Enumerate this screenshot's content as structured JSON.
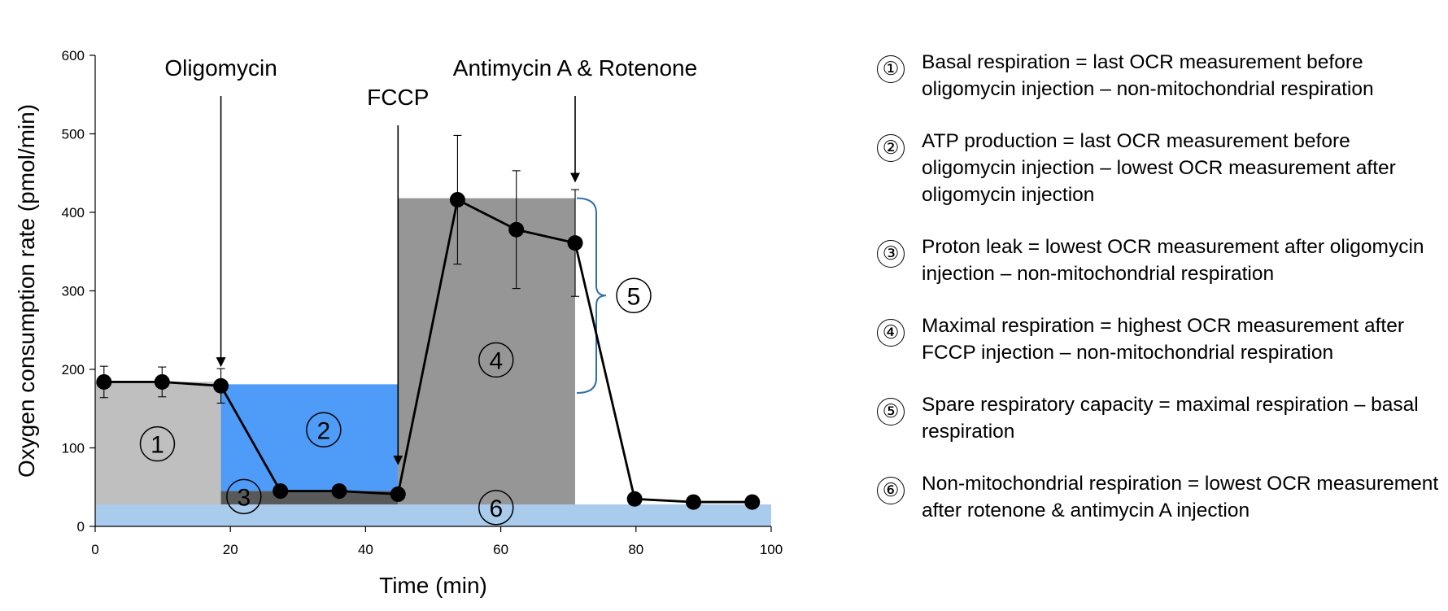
{
  "chart_data": {
    "type": "line",
    "xlabel": "Time (min)",
    "ylabel": "Oxygen consumption rate (pmol/min)",
    "xlim": [
      0,
      100
    ],
    "ylim": [
      0,
      600
    ],
    "xticks": [
      0,
      20,
      40,
      60,
      80,
      100
    ],
    "yticks": [
      0,
      100,
      200,
      300,
      400,
      500,
      600
    ],
    "grid": false,
    "series": [
      {
        "x": [
          1.3,
          9.9,
          18.6,
          27.4,
          36.1,
          44.8,
          53.6,
          62.3,
          71.0,
          79.8,
          88.5,
          97.2
        ],
        "y": [
          184,
          184,
          179,
          45,
          45,
          41,
          416,
          378,
          361,
          35,
          31,
          31
        ],
        "error": [
          20,
          19,
          22,
          null,
          null,
          null,
          82,
          75,
          68,
          null,
          null,
          null
        ],
        "color": "#000000"
      }
    ],
    "regions": [
      {
        "label": "①",
        "x": [
          0,
          18.6
        ],
        "y": [
          0,
          184
        ],
        "color": "#bfbfbf"
      },
      {
        "label": "②",
        "x": [
          18.6,
          44.8
        ],
        "y": [
          45,
          181
        ],
        "color": "#4f9bf8"
      },
      {
        "label": "③",
        "x": [
          18.6,
          44.8
        ],
        "y": [
          28,
          45
        ],
        "color": "#595959"
      },
      {
        "label": "④",
        "x": [
          44.8,
          71.0
        ],
        "y": [
          28,
          418
        ],
        "color": "#969696"
      },
      {
        "label": "⑥",
        "x": [
          0,
          100
        ],
        "y": [
          0,
          28
        ],
        "color": "#a9cbec"
      }
    ],
    "brace": {
      "label": "⑤",
      "x": 71.0,
      "y": [
        170,
        418
      ],
      "color": "#2f6fa8"
    },
    "injections": [
      {
        "label": "Oligomycin",
        "x": 18.6,
        "y": 205
      },
      {
        "label": "FCCP",
        "x": 44.8,
        "y": 80
      },
      {
        "label": "Antimycin A & Rotenone",
        "x": 71.0,
        "y": 440
      }
    ]
  },
  "legend": [
    {
      "num": "①",
      "text": "Basal respiration = last OCR measurement before oligomycin injection – non-mitochondrial respiration"
    },
    {
      "num": "②",
      "text": "ATP production = last OCR measurement before oligomycin injection – lowest OCR measurement after oligomycin injection"
    },
    {
      "num": "③",
      "text": "Proton leak = lowest OCR measurement after oligomycin injection – non-mitochondrial respiration"
    },
    {
      "num": "④",
      "text": "Maximal respiration = highest OCR measurement after FCCP injection – non-mitochondrial respiration"
    },
    {
      "num": "⑤",
      "text": "Spare respiratory capacity = maximal respiration – basal respiration"
    },
    {
      "num": "⑥",
      "text": "Non-mitochondrial respiration = lowest OCR measurement after rotenone & antimycin A injection"
    }
  ]
}
